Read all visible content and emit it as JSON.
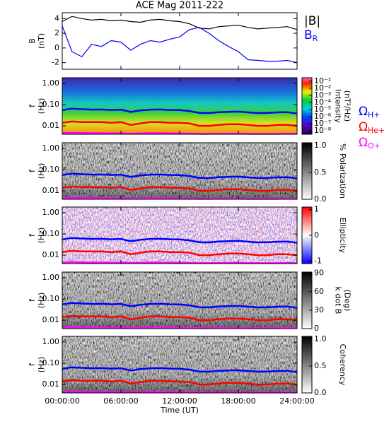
{
  "chart_data": [
    {
      "type": "line",
      "title": "ACE Mag 2011-222",
      "ylabel": [
        "B",
        "(nT)"
      ],
      "x": [
        0,
        1,
        2,
        3,
        4,
        5,
        6,
        7,
        8,
        9,
        10,
        11,
        12,
        13,
        14,
        15,
        16,
        17,
        18,
        19,
        20,
        21,
        22,
        23,
        24
      ],
      "xlim": [
        0,
        24
      ],
      "xticks": [
        0,
        6,
        12,
        18,
        24
      ],
      "ylim": [
        -2.9,
        4.8
      ],
      "yticks": [
        -2,
        0,
        2,
        4
      ],
      "legend": "outside-right",
      "series": [
        {
          "name": "|B|",
          "color": "#000000",
          "values": [
            3.6,
            4.3,
            4.0,
            3.8,
            3.9,
            3.7,
            3.8,
            3.6,
            3.5,
            3.8,
            3.9,
            3.7,
            3.6,
            3.3,
            2.7,
            2.6,
            2.9,
            3.0,
            3.1,
            2.8,
            2.6,
            2.7,
            2.8,
            2.9,
            2.5
          ]
        },
        {
          "name": "B",
          "sub": "R",
          "color": "#0000ff",
          "values": [
            3.0,
            -0.5,
            -1.2,
            0.5,
            0.2,
            1.0,
            0.8,
            -0.3,
            0.5,
            1.0,
            0.8,
            1.2,
            1.5,
            2.5,
            2.8,
            2.0,
            1.0,
            0.2,
            -0.5,
            -1.6,
            -1.7,
            -1.8,
            -1.8,
            -1.7,
            -2.0
          ]
        }
      ]
    },
    {
      "type": "spectrogram",
      "background": "rainbow",
      "ylabel": [
        "f",
        "(Hz)"
      ],
      "yscale": "log",
      "x": [
        0,
        1,
        2,
        3,
        4,
        5,
        6,
        7,
        8,
        9,
        10,
        11,
        12,
        13,
        14,
        15,
        16,
        17,
        18,
        19,
        20,
        21,
        22,
        23,
        24
      ],
      "xlim": [
        0,
        24
      ],
      "xticks": [
        0,
        6,
        12,
        18,
        24
      ],
      "ylim": [
        0.004,
        1.85
      ],
      "yticks": [
        {
          "value": 1,
          "label": "1.00"
        },
        {
          "value": 0.1,
          "label": "0.10"
        },
        {
          "value": 0.01,
          "label": "0.01"
        }
      ],
      "colorbar_label": [
        "Intensity",
        "(nT²/Hz)"
      ],
      "colormap": "rainbow",
      "cscale": "log",
      "clim": [
        3e-09,
        0.3
      ],
      "cticks": [
        {
          "value": 0.1,
          "label": "10⁻¹"
        },
        {
          "value": 0.01,
          "label": "10⁻²"
        },
        {
          "value": 0.001,
          "label": "10⁻³"
        },
        {
          "value": 0.0001,
          "label": "10⁻⁴"
        },
        {
          "value": 1e-05,
          "label": "10⁻⁵"
        },
        {
          "value": 1e-06,
          "label": "10⁻⁶"
        },
        {
          "value": 1e-07,
          "label": "10⁻⁷"
        },
        {
          "value": 1e-08,
          "label": "10⁻⁸"
        }
      ],
      "legend": "outside-right",
      "series": [
        {
          "name": "Ω",
          "sub": "H+",
          "color": "#0000ff",
          "values": [
            0.055,
            0.065,
            0.061,
            0.058,
            0.059,
            0.056,
            0.058,
            0.045,
            0.053,
            0.058,
            0.059,
            0.056,
            0.055,
            0.05,
            0.041,
            0.04,
            0.044,
            0.046,
            0.047,
            0.043,
            0.04,
            0.041,
            0.043,
            0.044,
            0.038
          ]
        },
        {
          "name": "Ω",
          "sub": "He+",
          "color": "#ff0000",
          "values": [
            0.014,
            0.016,
            0.015,
            0.015,
            0.015,
            0.014,
            0.015,
            0.011,
            0.013,
            0.015,
            0.015,
            0.014,
            0.014,
            0.013,
            0.01,
            0.01,
            0.011,
            0.012,
            0.012,
            0.011,
            0.01,
            0.01,
            0.011,
            0.011,
            0.01
          ]
        },
        {
          "name": "Ω",
          "sub": "O+",
          "color": "#ff00ff",
          "values": [
            0.0045,
            0.0047,
            0.0046,
            0.0045,
            0.0045,
            0.0044,
            0.0045,
            0.0043,
            0.0044,
            0.0045,
            0.0045,
            0.0044,
            0.0044,
            0.0043,
            0.0042,
            0.0042,
            0.0043,
            0.0043,
            0.0043,
            0.0042,
            0.0042,
            0.0042,
            0.0042,
            0.0043,
            0.0042
          ]
        }
      ]
    },
    {
      "type": "spectrogram",
      "background": "gray",
      "ylabel": [
        "f",
        "(Hz)"
      ],
      "yscale": "log",
      "x": [
        0,
        1,
        2,
        3,
        4,
        5,
        6,
        7,
        8,
        9,
        10,
        11,
        12,
        13,
        14,
        15,
        16,
        17,
        18,
        19,
        20,
        21,
        22,
        23,
        24
      ],
      "xlim": [
        0,
        24
      ],
      "xticks": [
        0,
        6,
        12,
        18,
        24
      ],
      "ylim": [
        0.004,
        1.85
      ],
      "yticks": [
        {
          "value": 1,
          "label": "1.00"
        },
        {
          "value": 0.1,
          "label": "0.10"
        },
        {
          "value": 0.01,
          "label": "0.01"
        }
      ],
      "colorbar_label": [
        "% Polarization"
      ],
      "colormap": "gray",
      "clim": [
        0,
        1.05
      ],
      "cticks": [
        {
          "value": 1,
          "label": "1.0"
        },
        0.5,
        {
          "value": 0,
          "label": "0.0"
        }
      ],
      "series": [
        {
          "color": "#0000ff",
          "values": [
            0.055,
            0.065,
            0.061,
            0.058,
            0.059,
            0.056,
            0.058,
            0.045,
            0.053,
            0.058,
            0.059,
            0.056,
            0.055,
            0.05,
            0.041,
            0.04,
            0.044,
            0.046,
            0.047,
            0.043,
            0.04,
            0.041,
            0.043,
            0.044,
            0.038
          ]
        },
        {
          "color": "#ff0000",
          "values": [
            0.014,
            0.016,
            0.015,
            0.015,
            0.015,
            0.014,
            0.015,
            0.011,
            0.013,
            0.015,
            0.015,
            0.014,
            0.014,
            0.013,
            0.01,
            0.01,
            0.011,
            0.012,
            0.012,
            0.011,
            0.01,
            0.01,
            0.011,
            0.011,
            0.01
          ]
        },
        {
          "color": "#ff00ff",
          "values": [
            0.0045,
            0.0047,
            0.0046,
            0.0045,
            0.0045,
            0.0044,
            0.0045,
            0.0043,
            0.0044,
            0.0045,
            0.0045,
            0.0044,
            0.0044,
            0.0043,
            0.0042,
            0.0042,
            0.0043,
            0.0043,
            0.0043,
            0.0042,
            0.0042,
            0.0042,
            0.0042,
            0.0043,
            0.0042
          ]
        }
      ]
    },
    {
      "type": "spectrogram",
      "background": "bwr",
      "ylabel": [
        "f",
        "(Hz)"
      ],
      "yscale": "log",
      "x": [
        0,
        1,
        2,
        3,
        4,
        5,
        6,
        7,
        8,
        9,
        10,
        11,
        12,
        13,
        14,
        15,
        16,
        17,
        18,
        19,
        20,
        21,
        22,
        23,
        24
      ],
      "xlim": [
        0,
        24
      ],
      "xticks": [
        0,
        6,
        12,
        18,
        24
      ],
      "ylim": [
        0.004,
        1.85
      ],
      "yticks": [
        {
          "value": 1,
          "label": "1.00"
        },
        {
          "value": 0.1,
          "label": "0.10"
        },
        {
          "value": 0.01,
          "label": "0.01"
        }
      ],
      "colorbar_label": [
        "Ellipticity"
      ],
      "colormap": "bwr",
      "clim": [
        -1.1,
        1.1
      ],
      "cticks": [
        1,
        0,
        -1
      ],
      "series": [
        {
          "color": "#0000ff",
          "values": [
            0.055,
            0.065,
            0.061,
            0.058,
            0.059,
            0.056,
            0.058,
            0.045,
            0.053,
            0.058,
            0.059,
            0.056,
            0.055,
            0.05,
            0.041,
            0.04,
            0.044,
            0.046,
            0.047,
            0.043,
            0.04,
            0.041,
            0.043,
            0.044,
            0.038
          ]
        },
        {
          "color": "#ff0000",
          "values": [
            0.014,
            0.016,
            0.015,
            0.015,
            0.015,
            0.014,
            0.015,
            0.011,
            0.013,
            0.015,
            0.015,
            0.014,
            0.014,
            0.013,
            0.01,
            0.01,
            0.011,
            0.012,
            0.012,
            0.011,
            0.01,
            0.01,
            0.011,
            0.011,
            0.01
          ]
        },
        {
          "color": "#ff00ff",
          "values": [
            0.0045,
            0.0047,
            0.0046,
            0.0045,
            0.0045,
            0.0044,
            0.0045,
            0.0043,
            0.0044,
            0.0045,
            0.0045,
            0.0044,
            0.0044,
            0.0043,
            0.0042,
            0.0042,
            0.0043,
            0.0043,
            0.0043,
            0.0042,
            0.0042,
            0.0042,
            0.0042,
            0.0043,
            0.0042
          ]
        }
      ]
    },
    {
      "type": "spectrogram",
      "background": "gray",
      "ylabel": [
        "f",
        "(Hz)"
      ],
      "yscale": "log",
      "x": [
        0,
        1,
        2,
        3,
        4,
        5,
        6,
        7,
        8,
        9,
        10,
        11,
        12,
        13,
        14,
        15,
        16,
        17,
        18,
        19,
        20,
        21,
        22,
        23,
        24
      ],
      "xlim": [
        0,
        24
      ],
      "xticks": [
        0,
        6,
        12,
        18,
        24
      ],
      "ylim": [
        0.004,
        1.85
      ],
      "yticks": [
        {
          "value": 1,
          "label": "1.00"
        },
        {
          "value": 0.1,
          "label": "0.10"
        },
        {
          "value": 0.01,
          "label": "0.01"
        }
      ],
      "colorbar_label": [
        "k dot B",
        "(Deg)"
      ],
      "colormap": "gray",
      "clim": [
        0,
        92
      ],
      "cticks": [
        90,
        60,
        30,
        0
      ],
      "series": [
        {
          "color": "#0000ff",
          "values": [
            0.055,
            0.065,
            0.061,
            0.058,
            0.059,
            0.056,
            0.058,
            0.045,
            0.053,
            0.058,
            0.059,
            0.056,
            0.055,
            0.05,
            0.041,
            0.04,
            0.044,
            0.046,
            0.047,
            0.043,
            0.04,
            0.041,
            0.043,
            0.044,
            0.038
          ]
        },
        {
          "color": "#ff0000",
          "values": [
            0.014,
            0.016,
            0.015,
            0.015,
            0.015,
            0.014,
            0.015,
            0.011,
            0.013,
            0.015,
            0.015,
            0.014,
            0.014,
            0.013,
            0.01,
            0.01,
            0.011,
            0.012,
            0.012,
            0.011,
            0.01,
            0.01,
            0.011,
            0.011,
            0.01
          ]
        },
        {
          "color": "#ff00ff",
          "values": [
            0.0045,
            0.0047,
            0.0046,
            0.0045,
            0.0045,
            0.0044,
            0.0045,
            0.0043,
            0.0044,
            0.0045,
            0.0045,
            0.0044,
            0.0044,
            0.0043,
            0.0042,
            0.0042,
            0.0043,
            0.0043,
            0.0043,
            0.0042,
            0.0042,
            0.0042,
            0.0042,
            0.0043,
            0.0042
          ]
        }
      ]
    },
    {
      "type": "spectrogram",
      "background": "gray",
      "ylabel": [
        "f",
        "(Hz)"
      ],
      "yscale": "log",
      "xlabel": "Time (UT)",
      "x": [
        0,
        1,
        2,
        3,
        4,
        5,
        6,
        7,
        8,
        9,
        10,
        11,
        12,
        13,
        14,
        15,
        16,
        17,
        18,
        19,
        20,
        21,
        22,
        23,
        24
      ],
      "xlim": [
        0,
        24
      ],
      "xticks": [
        {
          "value": 0,
          "label": "00:00:00"
        },
        {
          "value": 6,
          "label": "06:00:00"
        },
        {
          "value": 12,
          "label": "12:00:00"
        },
        {
          "value": 18,
          "label": "18:00:00"
        },
        {
          "value": 24,
          "label": "24:00:00"
        }
      ],
      "ylim": [
        0.004,
        1.85
      ],
      "yticks": [
        {
          "value": 1,
          "label": "1.00"
        },
        {
          "value": 0.1,
          "label": "0.10"
        },
        {
          "value": 0.01,
          "label": "0.01"
        }
      ],
      "colorbar_label": [
        "Coherency"
      ],
      "colormap": "gray",
      "clim": [
        0,
        1.05
      ],
      "cticks": [
        {
          "value": 1,
          "label": "1.0"
        },
        0.5,
        {
          "value": 0,
          "label": "0.0"
        }
      ],
      "series": [
        {
          "color": "#0000ff",
          "values": [
            0.055,
            0.065,
            0.061,
            0.058,
            0.059,
            0.056,
            0.058,
            0.045,
            0.053,
            0.058,
            0.059,
            0.056,
            0.055,
            0.05,
            0.041,
            0.04,
            0.044,
            0.046,
            0.047,
            0.043,
            0.04,
            0.041,
            0.043,
            0.044,
            0.038
          ]
        },
        {
          "color": "#ff0000",
          "values": [
            0.014,
            0.016,
            0.015,
            0.015,
            0.015,
            0.014,
            0.015,
            0.011,
            0.013,
            0.015,
            0.015,
            0.014,
            0.014,
            0.013,
            0.01,
            0.01,
            0.011,
            0.012,
            0.012,
            0.011,
            0.01,
            0.01,
            0.011,
            0.011,
            0.01
          ]
        },
        {
          "color": "#ff00ff",
          "values": [
            0.0045,
            0.0047,
            0.0046,
            0.0045,
            0.0045,
            0.0044,
            0.0045,
            0.0043,
            0.0044,
            0.0045,
            0.0045,
            0.0044,
            0.0044,
            0.0043,
            0.0042,
            0.0042,
            0.0043,
            0.0043,
            0.0043,
            0.0042,
            0.0042,
            0.0042,
            0.0042,
            0.0043,
            0.0042
          ]
        }
      ]
    }
  ]
}
